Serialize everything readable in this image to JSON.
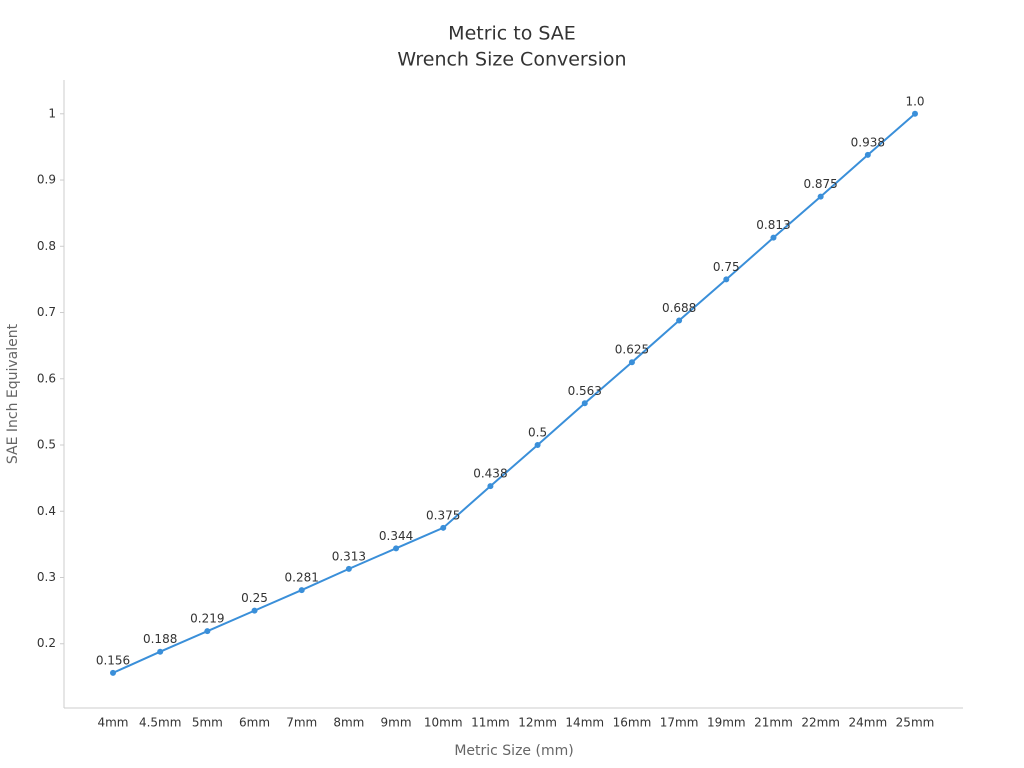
{
  "chart_data": {
    "type": "line",
    "title": [
      "Metric to SAE",
      "Wrench Size Conversion"
    ],
    "x_label": "Metric Size (mm)",
    "y_label": "SAE Inch Equivalent",
    "categories": [
      "4mm",
      "4.5mm",
      "5mm",
      "6mm",
      "7mm",
      "8mm",
      "9mm",
      "10mm",
      "11mm",
      "12mm",
      "14mm",
      "16mm",
      "17mm",
      "19mm",
      "21mm",
      "22mm",
      "24mm",
      "25mm"
    ],
    "values": [
      0.156,
      0.188,
      0.219,
      0.25,
      0.281,
      0.313,
      0.344,
      0.375,
      0.438,
      0.5,
      0.563,
      0.625,
      0.688,
      0.75,
      0.813,
      0.875,
      0.938,
      1.0
    ],
    "value_labels": [
      "0.156",
      "0.188",
      "0.219",
      "0.25",
      "0.281",
      "0.313",
      "0.344",
      "0.375",
      "0.438",
      "0.5",
      "0.563",
      "0.625",
      "0.688",
      "0.75",
      "0.813",
      "0.875",
      "0.938",
      "1.0"
    ],
    "color": "#3a8fd9",
    "ylim": [
      0.103,
      1.051
    ],
    "yticks": [
      0.2,
      0.3,
      0.4,
      0.5,
      0.6,
      0.7,
      0.8,
      0.9,
      1
    ],
    "grid": false
  }
}
